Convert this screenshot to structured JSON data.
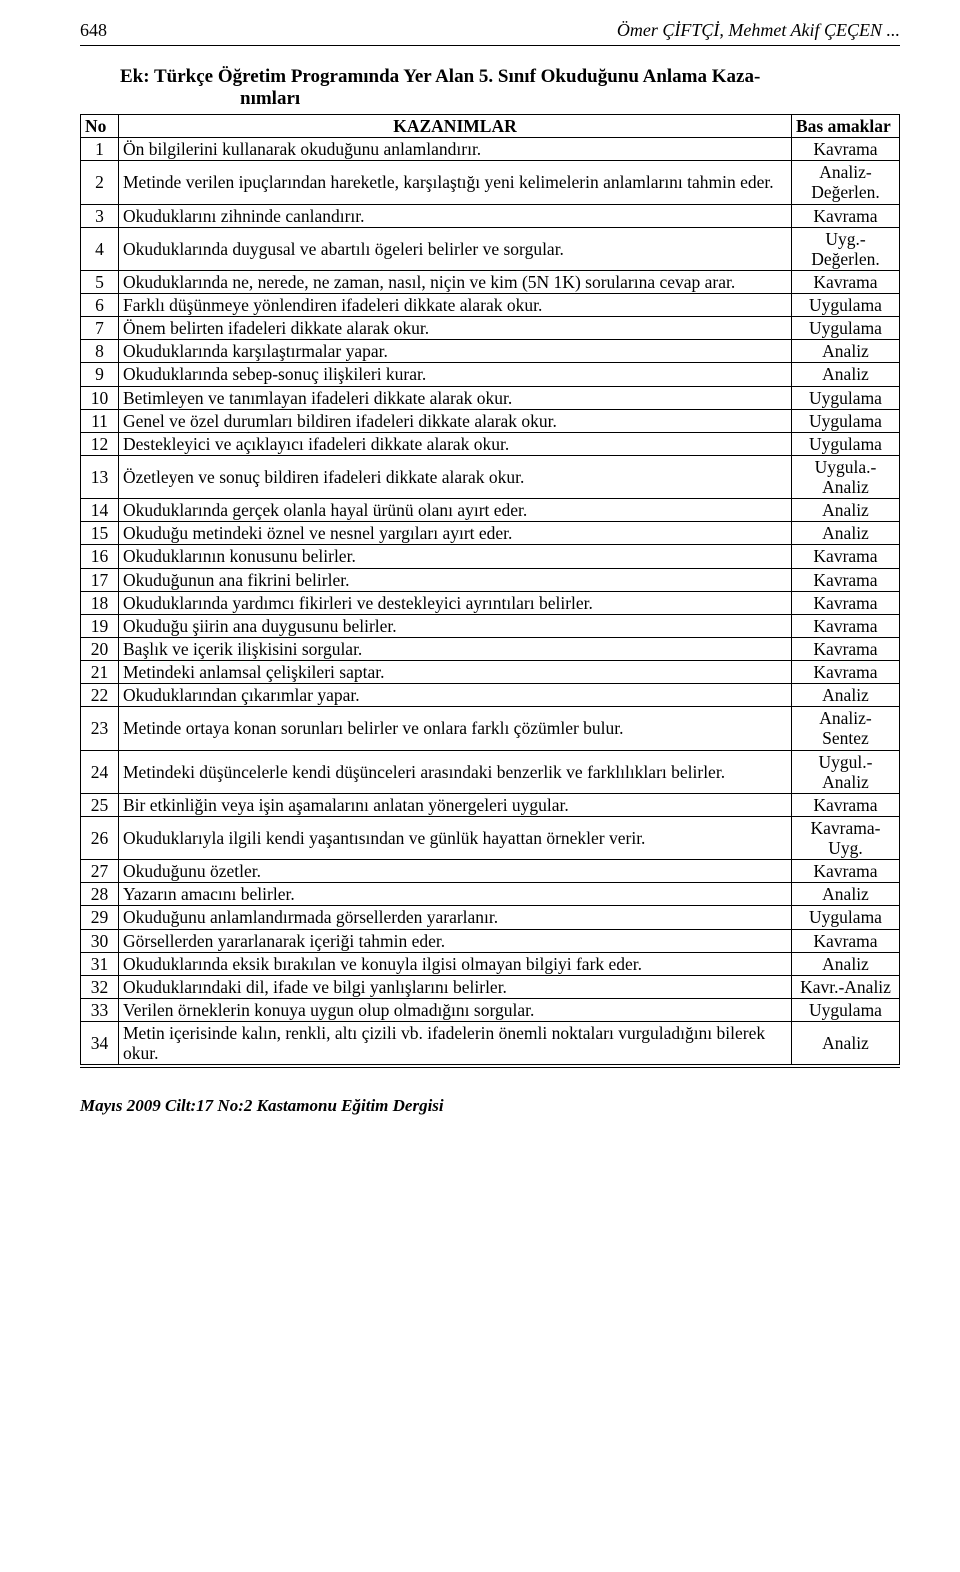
{
  "header": {
    "page_number": "648",
    "running_head": "Ömer ÇİFTÇİ, Mehmet Akif ÇEÇEN ..."
  },
  "appendix": {
    "line1": "Ek: Türkçe Öğretim Programında Yer Alan 5. Sınıf Okuduğunu Anlama Kaza-",
    "line2": "nımları"
  },
  "table": {
    "columns": {
      "no": "No",
      "kazanim": "KAZANIMLAR",
      "basamak": "Bas amaklar"
    },
    "rows": [
      {
        "no": "1",
        "k": "Ön bilgilerini kullanarak okuduğunu anlamlandırır.",
        "b": "Kavrama"
      },
      {
        "no": "2",
        "k": "Metinde verilen ipuçlarından hareketle, karşılaştığı yeni kelimelerin anlamlarını tahmin eder.",
        "b": "Analiz-Değerlen."
      },
      {
        "no": "3",
        "k": "Okuduklarını zihninde canlandırır.",
        "b": "Kavrama"
      },
      {
        "no": "4",
        "k": "Okuduklarında duygusal ve abartılı ögeleri belirler ve sorgular.",
        "b": "Uyg.-Değerlen."
      },
      {
        "no": "5",
        "k": "Okuduklarında ne, nerede, ne zaman, nasıl, niçin ve kim (5N 1K) sorularına cevap arar.",
        "b": "Kavrama"
      },
      {
        "no": "6",
        "k": "Farklı düşünmeye yönlendiren ifadeleri dikkate alarak okur.",
        "b": "Uygulama"
      },
      {
        "no": "7",
        "k": "Önem belirten ifadeleri dikkate alarak okur.",
        "b": "Uygulama"
      },
      {
        "no": "8",
        "k": "Okuduklarında karşılaştırmalar yapar.",
        "b": "Analiz"
      },
      {
        "no": "9",
        "k": "Okuduklarında sebep-sonuç ilişkileri kurar.",
        "b": "Analiz"
      },
      {
        "no": "10",
        "k": "Betimleyen ve tanımlayan ifadeleri dikkate alarak okur.",
        "b": "Uygulama"
      },
      {
        "no": "11",
        "k": "Genel ve özel durumları bildiren ifadeleri dikkate alarak okur.",
        "b": "Uygulama"
      },
      {
        "no": "12",
        "k": "Destekleyici ve açıklayıcı ifadeleri dikkate alarak okur.",
        "b": "Uygulama"
      },
      {
        "no": "13",
        "k": "Özetleyen ve sonuç bildiren ifadeleri dikkate alarak okur.",
        "b": "Uygula.-Analiz"
      },
      {
        "no": "14",
        "k": "Okuduklarında gerçek olanla hayal ürünü olanı ayırt eder.",
        "b": "Analiz"
      },
      {
        "no": "15",
        "k": "Okuduğu metindeki öznel ve nesnel yargıları ayırt eder.",
        "b": "Analiz"
      },
      {
        "no": "16",
        "k": "Okuduklarının konusunu belirler.",
        "b": "Kavrama"
      },
      {
        "no": "17",
        "k": "Okuduğunun ana fikrini belirler.",
        "b": "Kavrama"
      },
      {
        "no": "18",
        "k": "Okuduklarında yardımcı fikirleri ve destekleyici ayrıntıları belirler.",
        "b": "Kavrama"
      },
      {
        "no": "19",
        "k": "Okuduğu şiirin ana duygusunu belirler.",
        "b": "Kavrama"
      },
      {
        "no": "20",
        "k": "Başlık ve içerik ilişkisini sorgular.",
        "b": "Kavrama"
      },
      {
        "no": "21",
        "k": "Metindeki anlamsal çelişkileri saptar.",
        "b": "Kavrama"
      },
      {
        "no": "22",
        "k": "Okuduklarından çıkarımlar yapar.",
        "b": "Analiz"
      },
      {
        "no": "23",
        "k": "Metinde ortaya konan sorunları belirler ve onlara farklı çözümler bulur.",
        "b": "Analiz-Sentez"
      },
      {
        "no": "24",
        "k": "Metindeki düşüncelerle kendi düşünceleri arasındaki benzerlik ve farklılıkları belirler.",
        "b": "Uygul.-Analiz"
      },
      {
        "no": "25",
        "k": "Bir etkinliğin veya işin aşamalarını anlatan yönergeleri uygular.",
        "b": "Kavrama"
      },
      {
        "no": "26",
        "k": "Okuduklarıyla ilgili kendi yaşantısından ve günlük hayattan örnekler verir.",
        "b": "Kavrama-Uyg."
      },
      {
        "no": "27",
        "k": "Okuduğunu özetler.",
        "b": "Kavrama"
      },
      {
        "no": "28",
        "k": "Yazarın amacını belirler.",
        "b": "Analiz"
      },
      {
        "no": "29",
        "k": "Okuduğunu anlamlandırmada görsellerden yararlanır.",
        "b": "Uygulama"
      },
      {
        "no": "30",
        "k": "Görsellerden yararlanarak içeriği tahmin eder.",
        "b": "Kavrama"
      },
      {
        "no": "31",
        "k": "Okuduklarında eksik bırakılan ve konuyla ilgisi olmayan bilgiyi fark eder.",
        "b": "Analiz"
      },
      {
        "no": "32",
        "k": "Okuduklarındaki dil, ifade ve bilgi yanlışlarını belirler.",
        "b": "Kavr.-Analiz"
      },
      {
        "no": "33",
        "k": "Verilen örneklerin konuya uygun olup olmadığını sorgular.",
        "b": "Uygulama"
      },
      {
        "no": "34",
        "k": "Metin içerisinde kalın, renkli, altı çizili vb. ifadelerin önemli noktaları vurguladığını bilerek okur.",
        "b": "Analiz"
      }
    ]
  },
  "footer": "Mayıs 2009 Cilt:17 No:2 Kastamonu Eğitim Dergisi"
}
